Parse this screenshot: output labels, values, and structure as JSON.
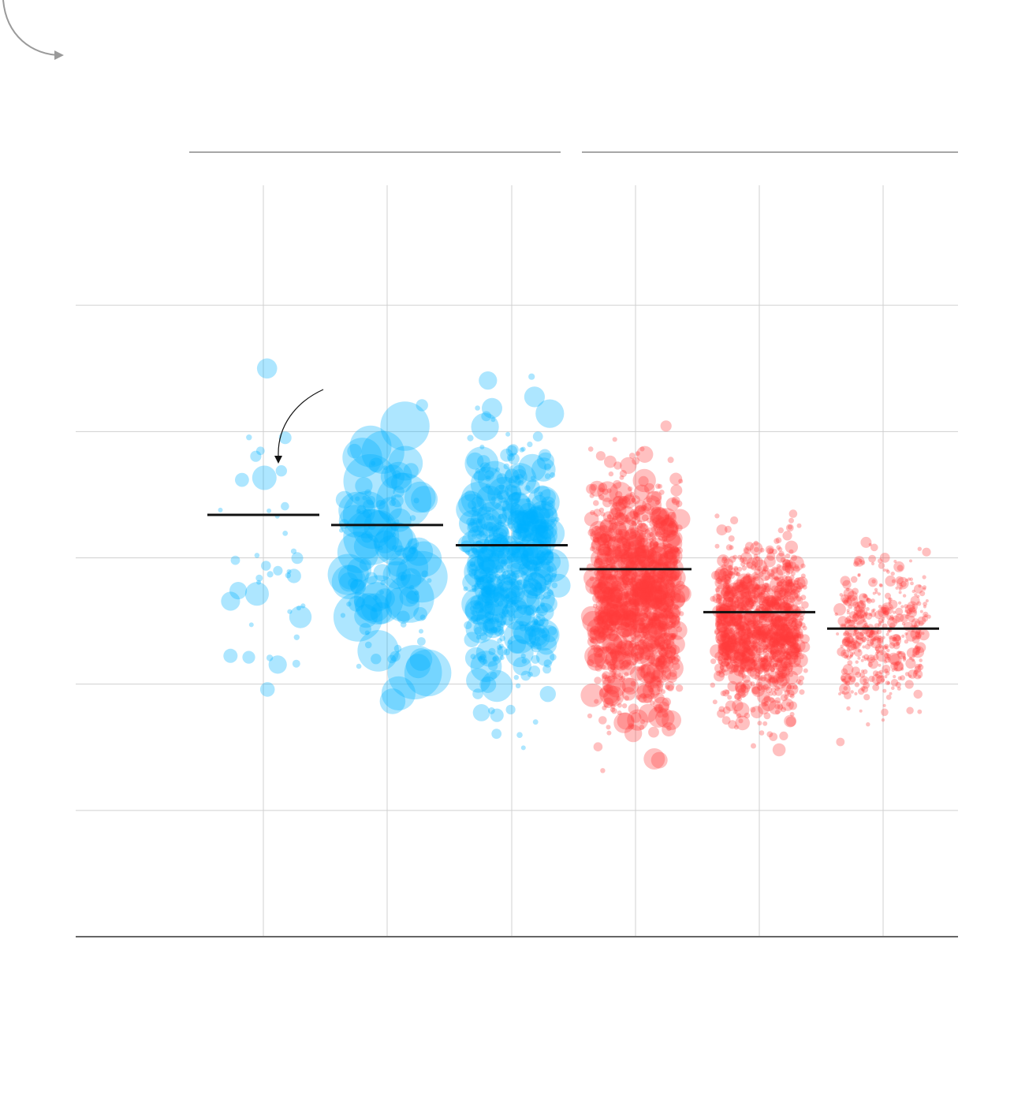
{
  "chart_data": {
    "type": "scatter",
    "title": "",
    "xlabel": "",
    "ylabel": "",
    "categories": [
      "",
      "",
      "",
      "",
      "",
      ""
    ],
    "groups": [
      {
        "label": "",
        "categories": [
          0,
          1,
          2
        ],
        "color": "#00b2ff"
      },
      {
        "label": "",
        "categories": [
          3,
          4,
          5
        ],
        "color": "#ff3a3a"
      }
    ],
    "ylim": [
      0,
      6
    ],
    "yticks": [
      0,
      1,
      2,
      3,
      4,
      5
    ],
    "grid": true,
    "legend": "none",
    "medians": [
      3.34,
      3.26,
      3.1,
      2.91,
      2.57,
      2.44
    ],
    "series": [
      {
        "name": "",
        "category": 0,
        "color": "#00b2ff",
        "n": 40,
        "center": 3.05,
        "spread": 0.95,
        "size_min": 3,
        "size_max": 16
      },
      {
        "name": "",
        "category": 1,
        "color": "#00b2ff",
        "n": 130,
        "center": 3.0,
        "spread": 0.95,
        "size_min": 3,
        "size_max": 36
      },
      {
        "name": "",
        "category": 2,
        "color": "#00b2ff",
        "n": 520,
        "center": 2.95,
        "spread": 0.85,
        "size_min": 3,
        "size_max": 22
      },
      {
        "name": "",
        "category": 3,
        "color": "#ff3a3a",
        "n": 1100,
        "center": 2.7,
        "spread": 0.85,
        "size_min": 3,
        "size_max": 15
      },
      {
        "name": "",
        "category": 4,
        "color": "#ff3a3a",
        "n": 1100,
        "center": 2.45,
        "spread": 0.55,
        "size_min": 3,
        "size_max": 10
      },
      {
        "name": "",
        "category": 5,
        "color": "#ff3a3a",
        "n": 450,
        "center": 2.4,
        "spread": 0.5,
        "size_min": 2,
        "size_max": 8
      }
    ]
  },
  "colors": {
    "blue": "#00b2ff",
    "red": "#ff3a3a",
    "median": "#111111",
    "grid": "#d0d0d0"
  },
  "icons": {
    "corner": "curved-arrow-icon",
    "annotation": "curved-pointer-arrow-icon"
  }
}
